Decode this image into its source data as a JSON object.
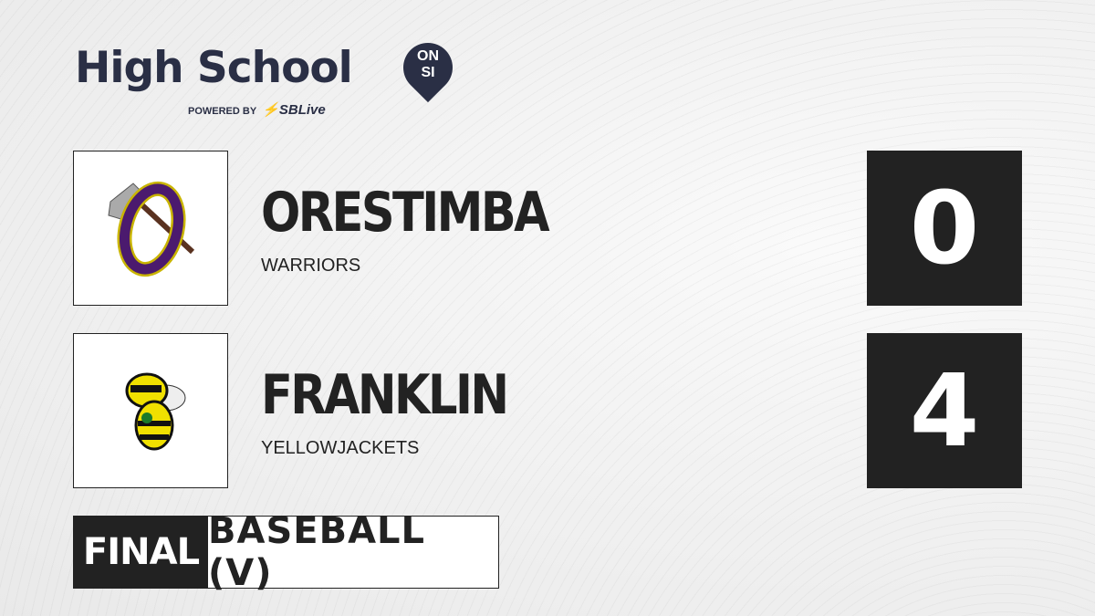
{
  "brand": {
    "title": "High School",
    "badge_top": "ON",
    "badge_bottom": "SI",
    "powered_by": "POWERED BY",
    "partner": "SBLive"
  },
  "teams": [
    {
      "name": "ORESTIMBA",
      "mascot": "WARRIORS",
      "score": "0",
      "logo_colors": [
        "#4b1a6e",
        "#c9b400"
      ]
    },
    {
      "name": "FRANKLIN",
      "mascot": "YELLOWJACKETS",
      "score": "4",
      "logo_colors": [
        "#f0e000",
        "#1a7a2a"
      ]
    }
  ],
  "game": {
    "status": "FINAL",
    "sport": "BASEBALL (V)"
  }
}
